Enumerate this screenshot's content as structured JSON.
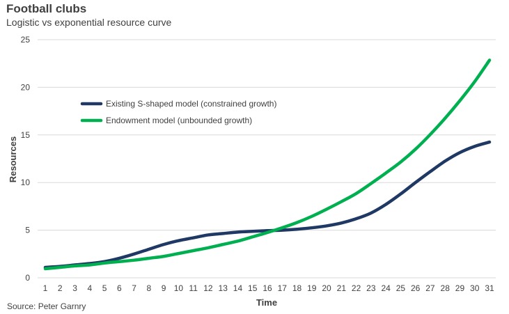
{
  "header": {
    "title": "Football clubs",
    "subtitle": "Logistic vs exponential resource curve"
  },
  "footer": {
    "source": "Source: Peter Garnry"
  },
  "colors": {
    "existing": "#1f3864",
    "endowment": "#00b050",
    "grid": "#d9d9d9",
    "text": "#404040"
  },
  "chart_data": {
    "type": "line",
    "title": "Football clubs",
    "subtitle": "Logistic vs exponential resource curve",
    "xlabel": "Time",
    "ylabel": "Resources",
    "x": [
      1,
      2,
      3,
      4,
      5,
      6,
      7,
      8,
      9,
      10,
      11,
      12,
      13,
      14,
      15,
      16,
      17,
      18,
      19,
      20,
      21,
      22,
      23,
      24,
      25,
      26,
      27,
      28,
      29,
      30,
      31
    ],
    "xticks": [
      "1",
      "2",
      "3",
      "4",
      "5",
      "6",
      "7",
      "8",
      "9",
      "10",
      "11",
      "12",
      "13",
      "14",
      "15",
      "16",
      "17",
      "18",
      "19",
      "20",
      "21",
      "22",
      "23",
      "24",
      "25",
      "26",
      "27",
      "28",
      "29",
      "30",
      "31"
    ],
    "ylim": [
      0,
      25
    ],
    "yticks": [
      "0",
      "5",
      "10",
      "15",
      "20",
      "25"
    ],
    "grid": true,
    "legend_position": "upper-left",
    "series": [
      {
        "name": "Existing S-shaped model (constrained growth)",
        "values": [
          1.1,
          1.2,
          1.35,
          1.5,
          1.7,
          2.05,
          2.5,
          3.0,
          3.5,
          3.9,
          4.2,
          4.5,
          4.65,
          4.8,
          4.88,
          4.95,
          5.0,
          5.1,
          5.25,
          5.45,
          5.75,
          6.2,
          6.8,
          7.7,
          8.8,
          10.0,
          11.15,
          12.25,
          13.15,
          13.8,
          14.25
        ]
      },
      {
        "name": "Endowment model (unbounded growth)",
        "values": [
          0.95,
          1.1,
          1.25,
          1.35,
          1.55,
          1.7,
          1.85,
          2.05,
          2.25,
          2.55,
          2.85,
          3.15,
          3.5,
          3.85,
          4.3,
          4.75,
          5.25,
          5.8,
          6.45,
          7.2,
          8.0,
          8.85,
          9.9,
          11.0,
          12.15,
          13.5,
          15.05,
          16.75,
          18.6,
          20.6,
          22.85
        ]
      }
    ]
  }
}
